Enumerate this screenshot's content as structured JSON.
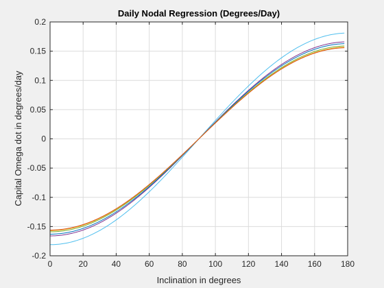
{
  "chart_data": {
    "type": "line",
    "title": "Daily Nodal Regression (Degrees/Day)",
    "xlabel": "Inclination in degrees",
    "ylabel": "Capital Omega dot in degrees/day",
    "xlim": [
      0,
      180
    ],
    "ylim": [
      -0.2,
      0.2
    ],
    "xticks": [
      0,
      20,
      40,
      60,
      80,
      100,
      120,
      140,
      160,
      180
    ],
    "yticks": [
      -0.2,
      -0.15,
      -0.1,
      -0.05,
      0,
      0.05,
      0.1,
      0.15,
      0.2
    ],
    "xtick_labels": [
      "0",
      "20",
      "40",
      "60",
      "80",
      "100",
      "120",
      "140",
      "160",
      "180"
    ],
    "ytick_labels": [
      "-0.2",
      "-0.15",
      "-0.1",
      "-0.05",
      "0",
      "0.05",
      "0.1",
      "0.15",
      "0.2"
    ],
    "grid": true,
    "legend": "none",
    "x": [
      0,
      10,
      20,
      30,
      40,
      50,
      60,
      70,
      80,
      90,
      100,
      110,
      120,
      130,
      140,
      150,
      160,
      170,
      178
    ],
    "series": [
      {
        "color": "#4dbeee",
        "amplitude": 0.181,
        "values": [
          -0.181,
          -0.1783,
          -0.1701,
          -0.1568,
          -0.1387,
          -0.1163,
          -0.0905,
          -0.0619,
          -0.0314,
          0.0,
          0.0314,
          0.0619,
          0.0905,
          0.1163,
          0.1387,
          0.1568,
          0.1701,
          0.1783,
          0.1809
        ]
      },
      {
        "color": "#7e2f8e",
        "amplitude": 0.166,
        "values": [
          -0.166,
          -0.1635,
          -0.156,
          -0.1438,
          -0.1272,
          -0.1067,
          -0.083,
          -0.0568,
          -0.0288,
          0.0,
          0.0288,
          0.0568,
          0.083,
          0.1067,
          0.1272,
          0.1438,
          0.156,
          0.1635,
          0.1659
        ]
      },
      {
        "color": "#0072bd",
        "amplitude": 0.163,
        "values": [
          -0.163,
          -0.1605,
          -0.1532,
          -0.1412,
          -0.1249,
          -0.1048,
          -0.0815,
          -0.0557,
          -0.0283,
          0.0,
          0.0283,
          0.0557,
          0.0815,
          0.1048,
          0.1249,
          0.1412,
          0.1532,
          0.1605,
          0.1629
        ]
      },
      {
        "color": "#77ac30",
        "amplitude": 0.159,
        "values": [
          -0.159,
          -0.1566,
          -0.1494,
          -0.1377,
          -0.1218,
          -0.1022,
          -0.0795,
          -0.0544,
          -0.0276,
          0.0,
          0.0276,
          0.0544,
          0.0795,
          0.1022,
          0.1218,
          0.1377,
          0.1494,
          0.1566,
          0.1589
        ]
      },
      {
        "color": "#edb120",
        "amplitude": 0.157,
        "values": [
          -0.157,
          -0.1546,
          -0.1475,
          -0.136,
          -0.1203,
          -0.1009,
          -0.0785,
          -0.0537,
          -0.0273,
          0.0,
          0.0273,
          0.0537,
          0.0785,
          0.1009,
          0.1203,
          0.136,
          0.1475,
          0.1546,
          0.1569
        ]
      },
      {
        "color": "#d95319",
        "amplitude": 0.156,
        "values": [
          -0.156,
          -0.1536,
          -0.1466,
          -0.1351,
          -0.1195,
          -0.1003,
          -0.078,
          -0.0534,
          -0.0271,
          0.0,
          0.0271,
          0.0534,
          0.078,
          0.1003,
          0.1195,
          0.1351,
          0.1466,
          0.1536,
          0.1559
        ]
      }
    ],
    "colors": {
      "background": "#f0f0f0",
      "axes": "#ffffff",
      "grid": "#dcdcdc",
      "axis_line": "#262626"
    }
  }
}
